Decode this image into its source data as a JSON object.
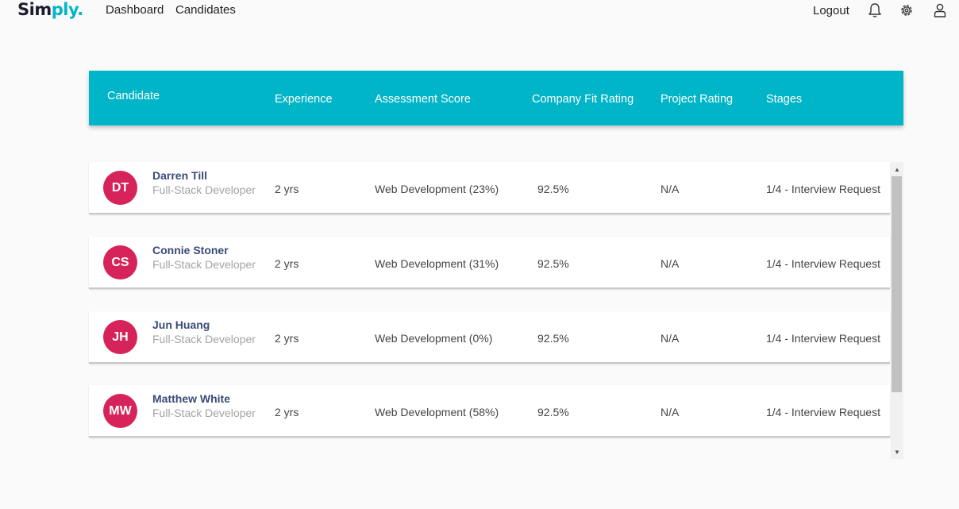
{
  "logo": {
    "main": "Sim",
    "accent": "ply."
  },
  "nav": {
    "dashboard": "Dashboard",
    "candidates": "Candidates"
  },
  "topbar": {
    "logout": "Logout",
    "icons": [
      "bell-icon",
      "gear-icon",
      "user-icon"
    ]
  },
  "colors": {
    "accent": "#00b5c8",
    "avatar": "#d6245a",
    "name": "#3a4b7a"
  },
  "table": {
    "headers": {
      "candidate": "Candidate",
      "experience": "Experience",
      "assessment": "Assessment Score",
      "fit": "Company Fit Rating",
      "project": "Project Rating",
      "stages": "Stages"
    },
    "rows": [
      {
        "initials": "DT",
        "name": "Darren Till",
        "role": "Full-Stack Developer",
        "experience": "2 yrs",
        "assessment": "Web Development (23%)",
        "fit": "92.5%",
        "project": "N/A",
        "stage": "1/4 - Interview Request"
      },
      {
        "initials": "CS",
        "name": "Connie Stoner",
        "role": "Full-Stack Developer",
        "experience": "2 yrs",
        "assessment": "Web Development (31%)",
        "fit": "92.5%",
        "project": "N/A",
        "stage": "1/4 - Interview Request"
      },
      {
        "initials": "JH",
        "name": "Jun Huang",
        "role": "Full-Stack Developer",
        "experience": "2 yrs",
        "assessment": "Web Development (0%)",
        "fit": "92.5%",
        "project": "N/A",
        "stage": "1/4 - Interview Request"
      },
      {
        "initials": "MW",
        "name": "Matthew White",
        "role": "Full-Stack Developer",
        "experience": "2 yrs",
        "assessment": "Web Development (58%)",
        "fit": "92.5%",
        "project": "N/A",
        "stage": "1/4 - Interview Request"
      }
    ]
  }
}
